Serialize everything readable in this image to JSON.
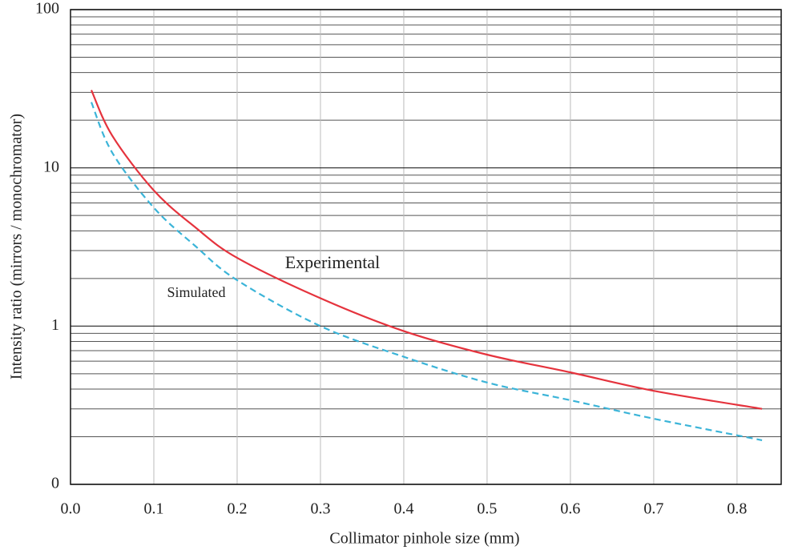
{
  "chart_data": {
    "type": "line",
    "x_label": "Collimator pinhole size (mm)",
    "y_label": "Intensity ratio (mirrors / monochromator)",
    "log_y": true,
    "grid": true,
    "xlim": [
      0,
      0.853
    ],
    "ylim": [
      0.1,
      100
    ],
    "xticks": [
      {
        "value": 0,
        "label": "0.0"
      },
      0.1,
      0.2,
      0.3,
      0.4,
      0.5,
      0.6,
      0.7,
      0.8
    ],
    "yticks": [
      {
        "value": 0.1,
        "label": "0"
      },
      1,
      10,
      100
    ],
    "series": [
      {
        "name": "Experimental",
        "color": "#e5333d",
        "dashed": false,
        "x": [
          0.025,
          0.05,
          0.1,
          0.15,
          0.2,
          0.3,
          0.4,
          0.5,
          0.6,
          0.7,
          0.83
        ],
        "values": [
          31,
          16,
          7.2,
          4.2,
          2.7,
          1.5,
          0.93,
          0.66,
          0.51,
          0.39,
          0.3
        ]
      },
      {
        "name": "Simulated",
        "color": "#3bb4d8",
        "dashed": true,
        "x": [
          0.025,
          0.05,
          0.1,
          0.15,
          0.2,
          0.3,
          0.4,
          0.5,
          0.6,
          0.7,
          0.83
        ],
        "values": [
          26,
          12.5,
          5.6,
          3.2,
          1.95,
          1.0,
          0.64,
          0.44,
          0.34,
          0.26,
          0.19
        ]
      }
    ]
  }
}
